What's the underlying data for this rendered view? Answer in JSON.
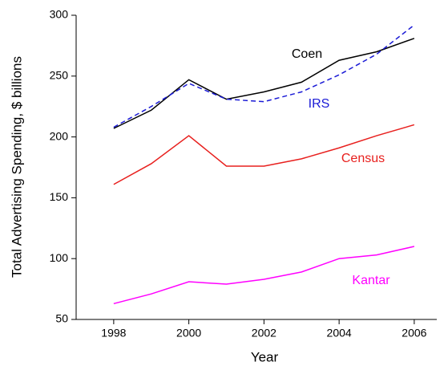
{
  "chart_data": {
    "type": "line",
    "x_label": "Year",
    "y_label": "Total Advertising Spending, $ billions",
    "x": [
      1998,
      1999,
      2000,
      2001,
      2002,
      2003,
      2004,
      2005,
      2006
    ],
    "series": [
      {
        "name": "Coen",
        "color": "#000000",
        "dashed": false,
        "values": [
          207,
          222,
          247,
          231,
          237,
          245,
          263,
          270,
          281
        ]
      },
      {
        "name": "IRS",
        "color": "#1a1ad6",
        "dashed": true,
        "values": [
          208,
          225,
          244,
          231,
          229,
          237,
          251,
          268,
          292
        ]
      },
      {
        "name": "Census",
        "color": "#e8201e",
        "dashed": false,
        "values": [
          161,
          178,
          201,
          176,
          176,
          182,
          191,
          201,
          210
        ]
      },
      {
        "name": "Kantar",
        "color": "#ff00ff",
        "dashed": false,
        "values": [
          63,
          71,
          81,
          79,
          83,
          89,
          100,
          103,
          110
        ]
      }
    ],
    "xlim": [
      1997,
      2006.6
    ],
    "ylim": [
      50,
      300
    ],
    "xticks": [
      1998,
      2000,
      2002,
      2004,
      2006
    ],
    "yticks": [
      50,
      100,
      150,
      200,
      250,
      300
    ],
    "grid": false
  }
}
